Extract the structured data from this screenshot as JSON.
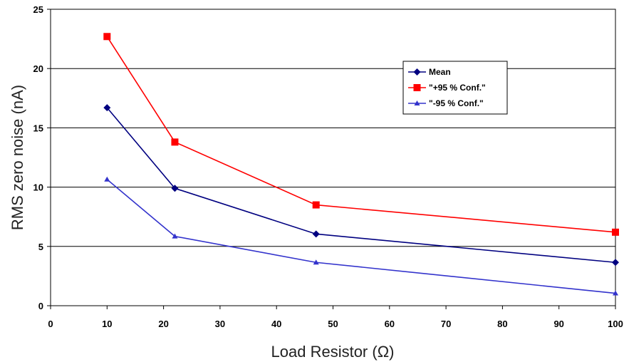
{
  "chart_data": {
    "type": "line",
    "title": "",
    "xlabel": "Load Resistor (Ω)",
    "ylabel": "RMS zero noise (nA)",
    "x": [
      10,
      22,
      47,
      100
    ],
    "xlim": [
      0,
      100
    ],
    "ylim": [
      0,
      25
    ],
    "x_ticks": [
      "0",
      "10",
      "20",
      "30",
      "40",
      "50",
      "60",
      "70",
      "80",
      "90",
      "100"
    ],
    "y_ticks": [
      "0",
      "5",
      "10",
      "15",
      "20",
      "25"
    ],
    "grid": "horizontal",
    "legend_position": "top-right",
    "series": [
      {
        "name": "Mean",
        "values": [
          16.7,
          9.9,
          6.05,
          3.65
        ],
        "color": "#000080",
        "marker": "diamond"
      },
      {
        "name": "\"+95 % Conf.\"",
        "values": [
          22.7,
          13.8,
          8.5,
          6.2
        ],
        "color": "#ff0000",
        "marker": "square"
      },
      {
        "name": "\"-95 % Conf.\"",
        "values": [
          10.65,
          5.85,
          3.65,
          1.05
        ],
        "color": "#3333cc",
        "marker": "triangle"
      }
    ]
  }
}
